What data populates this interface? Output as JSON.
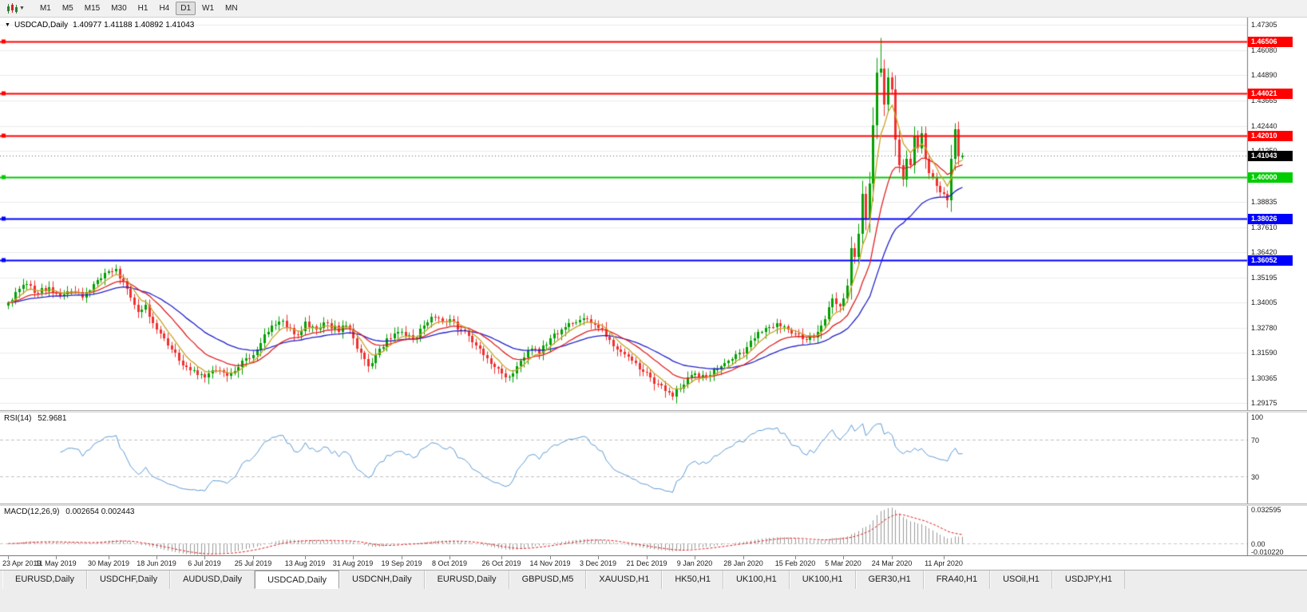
{
  "toolbar": {
    "chart_type_icon": "candlestick-chart-icon",
    "timeframes": [
      {
        "label": "M1",
        "active": false
      },
      {
        "label": "M5",
        "active": false
      },
      {
        "label": "M15",
        "active": false
      },
      {
        "label": "M30",
        "active": false
      },
      {
        "label": "H1",
        "active": false
      },
      {
        "label": "H4",
        "active": false
      },
      {
        "label": "D1",
        "active": true
      },
      {
        "label": "W1",
        "active": false
      },
      {
        "label": "MN",
        "active": false
      }
    ]
  },
  "chart_header": {
    "collapse_icon": "triangle-down-icon",
    "title": "USDCAD,Daily",
    "ohlc": "1.40977 1.41188 1.40892 1.41043"
  },
  "tabs": {
    "items": [
      "EURUSD,Daily",
      "USDCHF,Daily",
      "AUDUSD,Daily",
      "USDCAD,Daily",
      "USDCNH,Daily",
      "EURUSD,Daily",
      "GBPUSD,M5",
      "XAUUSD,H1",
      "HK50,H1",
      "UK100,H1",
      "UK100,H1",
      "GER30,H1",
      "FRA40,H1",
      "USOil,H1",
      "USDJPY,H1"
    ],
    "active_index": 3
  },
  "chart_data": {
    "type": "candlestick",
    "symbol": "USDCAD",
    "period": "Daily",
    "bars": 258,
    "last_ohlc": {
      "open": 1.40977,
      "high": 1.41188,
      "low": 1.40892,
      "close": 1.41043
    },
    "current_price": {
      "value": 1.41043,
      "label": "1.41043",
      "bg": "#000000"
    },
    "price_range": {
      "min": 1.2885,
      "max": 1.4765
    },
    "price_axis_ticks": [
      1.47305,
      1.4608,
      1.4489,
      1.43665,
      1.4244,
      1.4125,
      1.40025,
      1.38835,
      1.3761,
      1.3642,
      1.35195,
      1.34005,
      1.3278,
      1.3159,
      1.30365,
      1.29175
    ],
    "candle_colors": {
      "up": "#00a000",
      "down": "#f03030"
    },
    "grid_color": "#ececec",
    "horizontal_levels": [
      {
        "price": 1.46506,
        "label": "1.46506",
        "color": "#ff0000"
      },
      {
        "price": 1.44021,
        "label": "1.44021",
        "color": "#ff0000"
      },
      {
        "price": 1.4201,
        "label": "1.42010",
        "color": "#ff0000"
      },
      {
        "price": 1.4,
        "label": "1.40000",
        "color": "#00cc00"
      },
      {
        "price": 1.38026,
        "label": "1.38026",
        "color": "#0000ff"
      },
      {
        "price": 1.36052,
        "label": "1.36052",
        "color": "#0000ff"
      }
    ],
    "moving_averages": [
      {
        "name": "fast",
        "type": "ema",
        "period": 6,
        "color": "#c9a227"
      },
      {
        "name": "medium",
        "type": "ema",
        "period": 16,
        "color": "#e02020"
      },
      {
        "name": "slow",
        "type": "ema",
        "period": 34,
        "color": "#2020cc"
      }
    ],
    "close_path_anchors": [
      [
        0,
        1.34
      ],
      [
        2,
        1.345
      ],
      [
        5,
        1.349
      ],
      [
        8,
        1.3445
      ],
      [
        11,
        1.3475
      ],
      [
        14,
        1.343
      ],
      [
        17,
        1.3455
      ],
      [
        20,
        1.3425
      ],
      [
        23,
        1.349
      ],
      [
        25,
        1.3515
      ],
      [
        27,
        1.355
      ],
      [
        29,
        1.356
      ],
      [
        31,
        1.3505
      ],
      [
        33,
        1.3425
      ],
      [
        35,
        1.3355
      ],
      [
        37,
        1.339
      ],
      [
        39,
        1.33
      ],
      [
        42,
        1.323
      ],
      [
        45,
        1.316
      ],
      [
        48,
        1.309
      ],
      [
        51,
        1.3055
      ],
      [
        53,
        1.304
      ],
      [
        56,
        1.3075
      ],
      [
        59,
        1.305
      ],
      [
        62,
        1.309
      ],
      [
        64,
        1.3135
      ],
      [
        66,
        1.315
      ],
      [
        68,
        1.3205
      ],
      [
        70,
        1.326
      ],
      [
        73,
        1.331
      ],
      [
        76,
        1.328
      ],
      [
        78,
        1.3245
      ],
      [
        80,
        1.331
      ],
      [
        83,
        1.327
      ],
      [
        86,
        1.33
      ],
      [
        89,
        1.326
      ],
      [
        91,
        1.329
      ],
      [
        93,
        1.323
      ],
      [
        95,
        1.316
      ],
      [
        97,
        1.3095
      ],
      [
        99,
        1.315
      ],
      [
        102,
        1.323
      ],
      [
        106,
        1.326
      ],
      [
        109,
        1.3225
      ],
      [
        112,
        1.329
      ],
      [
        115,
        1.333
      ],
      [
        117,
        1.331
      ],
      [
        119,
        1.332
      ],
      [
        122,
        1.327
      ],
      [
        125,
        1.321
      ],
      [
        128,
        1.315
      ],
      [
        131,
        1.309
      ],
      [
        133,
        1.306
      ],
      [
        135,
        1.3045
      ],
      [
        138,
        1.312
      ],
      [
        141,
        1.318
      ],
      [
        143,
        1.3155
      ],
      [
        146,
        1.323
      ],
      [
        149,
        1.327
      ],
      [
        152,
        1.33
      ],
      [
        155,
        1.3325
      ],
      [
        157,
        1.33
      ],
      [
        159,
        1.328
      ],
      [
        162,
        1.322
      ],
      [
        165,
        1.3165
      ],
      [
        168,
        1.312
      ],
      [
        171,
        1.307
      ],
      [
        173,
        1.304
      ],
      [
        175,
        1.301
      ],
      [
        177,
        1.2975
      ],
      [
        179,
        1.295
      ],
      [
        181,
        1.299
      ],
      [
        183,
        1.304
      ],
      [
        185,
        1.306
      ],
      [
        188,
        1.3045
      ],
      [
        191,
        1.308
      ],
      [
        194,
        1.312
      ],
      [
        197,
        1.316
      ],
      [
        199,
        1.3185
      ],
      [
        201,
        1.323
      ],
      [
        204,
        1.328
      ],
      [
        207,
        1.33
      ],
      [
        210,
        1.327
      ],
      [
        212,
        1.325
      ],
      [
        215,
        1.322
      ],
      [
        218,
        1.326
      ],
      [
        220,
        1.332
      ],
      [
        222,
        1.342
      ],
      [
        224,
        1.338
      ],
      [
        225,
        1.342
      ],
      [
        226,
        1.348
      ],
      [
        227,
        1.366
      ],
      [
        228,
        1.362
      ],
      [
        229,
        1.373
      ],
      [
        230,
        1.392
      ],
      [
        231,
        1.38
      ],
      [
        232,
        1.397
      ],
      [
        233,
        1.425
      ],
      [
        234,
        1.45
      ],
      [
        235,
        1.452
      ],
      [
        236,
        1.435
      ],
      [
        237,
        1.448
      ],
      [
        238,
        1.442
      ],
      [
        239,
        1.418
      ],
      [
        240,
        1.406
      ],
      [
        241,
        1.399
      ],
      [
        242,
        1.409
      ],
      [
        243,
        1.406
      ],
      [
        244,
        1.42
      ],
      [
        245,
        1.414
      ],
      [
        246,
        1.421
      ],
      [
        247,
        1.409
      ],
      [
        248,
        1.402
      ],
      [
        249,
        1.4
      ],
      [
        250,
        1.396
      ],
      [
        251,
        1.393
      ],
      [
        252,
        1.392
      ],
      [
        253,
        1.389
      ],
      [
        254,
        1.409
      ],
      [
        255,
        1.423
      ],
      [
        256,
        1.41
      ],
      [
        257,
        1.41043
      ]
    ],
    "wick_overrides": [
      {
        "index": 235,
        "high": 1.4668
      },
      {
        "index": 255,
        "high": 1.426
      },
      {
        "index": 253,
        "low": 1.3855
      }
    ],
    "date_labels": [
      {
        "text": "23 Apr 2019",
        "index": 0
      },
      {
        "text": "11 May 2019",
        "index": 13
      },
      {
        "text": "30 May 2019",
        "index": 27
      },
      {
        "text": "18 Jun 2019",
        "index": 40
      },
      {
        "text": "6 Jul 2019",
        "index": 53
      },
      {
        "text": "25 Jul 2019",
        "index": 66
      },
      {
        "text": "13 Aug 2019",
        "index": 80
      },
      {
        "text": "31 Aug 2019",
        "index": 93
      },
      {
        "text": "19 Sep 2019",
        "index": 106
      },
      {
        "text": "8 Oct 2019",
        "index": 119
      },
      {
        "text": "26 Oct 2019",
        "index": 133
      },
      {
        "text": "14 Nov 2019",
        "index": 146
      },
      {
        "text": "3 Dec 2019",
        "index": 159
      },
      {
        "text": "21 Dec 2019",
        "index": 172
      },
      {
        "text": "9 Jan 2020",
        "index": 185
      },
      {
        "text": "28 Jan 2020",
        "index": 198
      },
      {
        "text": "15 Feb 2020",
        "index": 212
      },
      {
        "text": "5 Mar 2020",
        "index": 225
      },
      {
        "text": "24 Mar 2020",
        "index": 238
      },
      {
        "text": "11 Apr 2020",
        "index": 252
      }
    ],
    "rsi": {
      "name": "RSI(14)",
      "value": "52.9681",
      "color": "#5b9bd5",
      "period": 14,
      "levels": [
        30,
        70
      ],
      "range": [
        0,
        100
      ],
      "axis_labels": [
        {
          "text": "100",
          "value": 100
        },
        {
          "text": "70",
          "value": 70
        },
        {
          "text": "30",
          "value": 30
        }
      ]
    },
    "macd": {
      "name": "MACD(12,26,9)",
      "values": "0.002654 0.002443",
      "params": [
        12,
        26,
        9
      ],
      "histogram_color": "#9a9a9a",
      "signal_color": "#e02020",
      "range": [
        -0.01022,
        0.032595
      ],
      "axis_labels": [
        {
          "text": "0.032595",
          "value": 0.032595
        },
        {
          "text": "0.00",
          "value": 0
        },
        {
          "text": "-0.010220",
          "value": -0.01022
        }
      ]
    }
  }
}
